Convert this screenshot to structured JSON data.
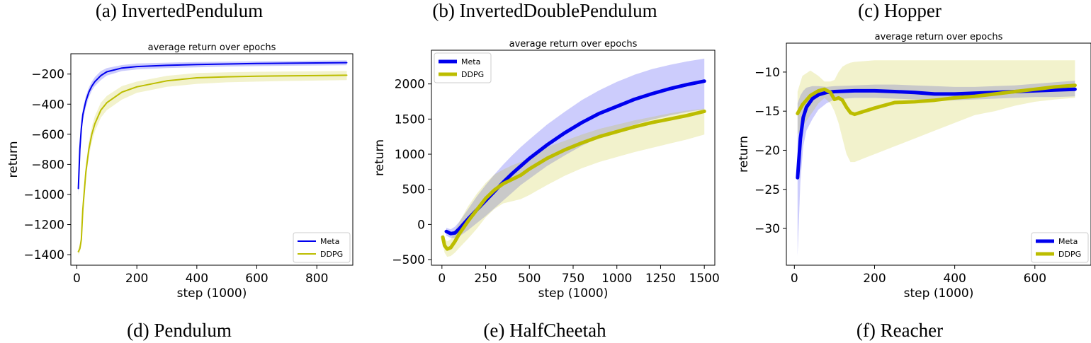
{
  "top_captions": [
    "(a)  InvertedPendulum",
    "(b)  InvertedDoublePendulum",
    "(c)  Hopper"
  ],
  "bottom_captions": [
    "(d)  Pendulum",
    "(e)  HalfCheetah",
    "(f)  Reacher"
  ],
  "colors": {
    "meta": "#0000ee",
    "ddpg": "#bcbd00"
  },
  "chart_data": [
    {
      "type": "line",
      "title": "average return over epochs",
      "xlabel": "step (1000)",
      "ylabel": "return",
      "xlim": [
        -20,
        920
      ],
      "ylim": [
        -1470,
        -65
      ],
      "xticks": [
        0,
        200,
        400,
        600,
        800
      ],
      "yticks": [
        -1400,
        -1200,
        -1000,
        -800,
        -600,
        -400,
        -200
      ],
      "legend": "lower-right",
      "series": [
        {
          "name": "Meta",
          "x": [
            5,
            10,
            15,
            20,
            30,
            40,
            50,
            60,
            80,
            100,
            150,
            200,
            300,
            400,
            500,
            600,
            700,
            800,
            900
          ],
          "y": [
            -960,
            -700,
            -560,
            -470,
            -380,
            -320,
            -280,
            -250,
            -210,
            -185,
            -160,
            -150,
            -142,
            -137,
            -133,
            -130,
            -128,
            -126,
            -124
          ],
          "lower": [
            -1010,
            -760,
            -610,
            -510,
            -420,
            -355,
            -310,
            -280,
            -240,
            -210,
            -180,
            -170,
            -160,
            -155,
            -150,
            -147,
            -145,
            -143,
            -141
          ],
          "upper": [
            -900,
            -640,
            -510,
            -430,
            -345,
            -290,
            -250,
            -220,
            -180,
            -160,
            -140,
            -130,
            -124,
            -120,
            -117,
            -115,
            -113,
            -111,
            -109
          ]
        },
        {
          "name": "DDPG",
          "x": [
            5,
            10,
            15,
            20,
            30,
            40,
            50,
            60,
            80,
            100,
            150,
            200,
            300,
            400,
            500,
            600,
            700,
            800,
            900
          ],
          "y": [
            -1380,
            -1360,
            -1300,
            -1100,
            -850,
            -700,
            -600,
            -530,
            -440,
            -390,
            -320,
            -285,
            -245,
            -225,
            -218,
            -214,
            -212,
            -210,
            -208
          ],
          "lower": [
            -1400,
            -1385,
            -1330,
            -1140,
            -900,
            -750,
            -650,
            -580,
            -490,
            -440,
            -370,
            -325,
            -285,
            -265,
            -255,
            -250,
            -246,
            -243,
            -240
          ],
          "upper": [
            -1360,
            -1335,
            -1270,
            -1060,
            -800,
            -650,
            -550,
            -480,
            -390,
            -345,
            -280,
            -250,
            -212,
            -193,
            -188,
            -185,
            -183,
            -181,
            -179
          ]
        }
      ]
    },
    {
      "type": "line",
      "title": "average return over epochs",
      "xlabel": "step (1000)",
      "ylabel": "return",
      "xlim": [
        -60,
        1560
      ],
      "ylim": [
        -580,
        2480
      ],
      "xticks": [
        0,
        250,
        500,
        750,
        1000,
        1250,
        1500
      ],
      "yticks": [
        -500,
        0,
        500,
        1000,
        1500,
        2000
      ],
      "legend": "upper-left",
      "series": [
        {
          "name": "Meta",
          "x": [
            25,
            50,
            75,
            100,
            150,
            200,
            250,
            300,
            350,
            400,
            450,
            500,
            600,
            700,
            800,
            900,
            1000,
            1100,
            1200,
            1300,
            1400,
            1500
          ],
          "y": [
            -100,
            -130,
            -120,
            -60,
            80,
            210,
            340,
            470,
            600,
            720,
            830,
            940,
            1130,
            1300,
            1450,
            1580,
            1680,
            1780,
            1860,
            1930,
            1990,
            2040
          ],
          "lower": [
            -160,
            -190,
            -200,
            -170,
            -80,
            20,
            120,
            230,
            340,
            450,
            560,
            650,
            830,
            980,
            1120,
            1240,
            1340,
            1420,
            1490,
            1550,
            1600,
            1640
          ],
          "upper": [
            -50,
            -70,
            -30,
            40,
            220,
            400,
            560,
            710,
            850,
            980,
            1100,
            1210,
            1420,
            1600,
            1770,
            1910,
            2030,
            2130,
            2210,
            2270,
            2320,
            2360
          ]
        },
        {
          "name": "DDPG",
          "x": [
            5,
            15,
            30,
            50,
            75,
            100,
            150,
            200,
            250,
            300,
            350,
            400,
            450,
            500,
            600,
            700,
            800,
            900,
            1000,
            1100,
            1200,
            1300,
            1400,
            1500
          ],
          "y": [
            -180,
            -300,
            -350,
            -330,
            -240,
            -130,
            50,
            210,
            370,
            490,
            580,
            640,
            700,
            790,
            940,
            1060,
            1160,
            1250,
            1320,
            1390,
            1450,
            1500,
            1550,
            1610
          ],
          "lower": [
            -280,
            -400,
            -460,
            -450,
            -400,
            -330,
            -200,
            -60,
            100,
            220,
            300,
            330,
            360,
            420,
            560,
            690,
            800,
            890,
            960,
            1030,
            1090,
            1150,
            1210,
            1280
          ],
          "upper": [
            -100,
            -200,
            -240,
            -210,
            -90,
            40,
            260,
            440,
            590,
            710,
            780,
            840,
            890,
            960,
            1100,
            1190,
            1280,
            1360,
            1420,
            1480,
            1530,
            1580,
            1620,
            1650
          ]
        }
      ]
    },
    {
      "type": "line",
      "title": "average return over epochs",
      "xlabel": "step (1000)",
      "ylabel": "return",
      "xlim": [
        -20,
        740
      ],
      "ylim": [
        -34.7,
        -6.3
      ],
      "xticks": [
        0,
        200,
        400,
        600
      ],
      "yticks": [
        -30,
        -25,
        -20,
        -15,
        -10
      ],
      "legend": "lower-right",
      "series": [
        {
          "name": "Meta",
          "x": [
            8,
            15,
            22,
            30,
            45,
            60,
            80,
            100,
            150,
            200,
            250,
            300,
            350,
            400,
            450,
            500,
            550,
            600,
            650,
            700
          ],
          "y": [
            -23.5,
            -18.5,
            -15.8,
            -14.5,
            -13.4,
            -12.9,
            -12.6,
            -12.5,
            -12.4,
            -12.4,
            -12.5,
            -12.6,
            -12.8,
            -12.8,
            -12.7,
            -12.6,
            -12.5,
            -12.4,
            -12.3,
            -12.2
          ],
          "lower": [
            -33.5,
            -24,
            -19.5,
            -17.5,
            -16,
            -14.8,
            -14,
            -13.5,
            -13.3,
            -13.3,
            -13.4,
            -13.5,
            -13.6,
            -13.6,
            -13.5,
            -13.4,
            -13.3,
            -13.2,
            -13.2,
            -13.1
          ],
          "upper": [
            -14,
            -13,
            -12.4,
            -12,
            -11.8,
            -11.8,
            -11.9,
            -11.8,
            -11.7,
            -11.6,
            -11.6,
            -11.7,
            -11.8,
            -11.9,
            -11.9,
            -11.8,
            -11.7,
            -11.5,
            -11.3,
            -11.1
          ]
        },
        {
          "name": "DDPG",
          "x": [
            8,
            20,
            40,
            60,
            75,
            90,
            100,
            110,
            120,
            130,
            140,
            150,
            175,
            200,
            250,
            300,
            350,
            400,
            450,
            500,
            550,
            600,
            650,
            700
          ],
          "y": [
            -15.3,
            -14.2,
            -13,
            -12.4,
            -12.2,
            -12.6,
            -13.5,
            -13.3,
            -13.6,
            -14.5,
            -15.2,
            -15.4,
            -15,
            -14.6,
            -13.9,
            -13.8,
            -13.6,
            -13.3,
            -13.1,
            -12.8,
            -12.5,
            -12.2,
            -11.9,
            -11.7
          ],
          "lower": [
            -18,
            -17,
            -15.5,
            -14,
            -13.3,
            -14,
            -15,
            -16.5,
            -18.5,
            -20.5,
            -21.5,
            -21.5,
            -21,
            -20.5,
            -19.5,
            -18.5,
            -17.5,
            -16.5,
            -15.5,
            -15,
            -14.3,
            -13.8,
            -13.5,
            -13.3
          ],
          "upper": [
            -12.5,
            -10.5,
            -9.8,
            -10.5,
            -11.2,
            -11.2,
            -11,
            -10,
            -9.3,
            -9,
            -8.8,
            -8.7,
            -8.6,
            -8.5,
            -8.5,
            -8.5,
            -8.5,
            -8.5,
            -8.5,
            -8.5,
            -8.5,
            -8.5,
            -8.5,
            -8.5
          ]
        }
      ]
    }
  ]
}
